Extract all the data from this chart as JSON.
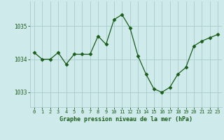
{
  "x": [
    0,
    1,
    2,
    3,
    4,
    5,
    6,
    7,
    8,
    9,
    10,
    11,
    12,
    13,
    14,
    15,
    16,
    17,
    18,
    19,
    20,
    21,
    22,
    23
  ],
  "y": [
    1034.2,
    1034.0,
    1034.0,
    1034.2,
    1033.85,
    1034.15,
    1034.15,
    1034.15,
    1034.7,
    1034.45,
    1035.2,
    1035.35,
    1034.95,
    1034.1,
    1033.55,
    1033.1,
    1033.0,
    1033.15,
    1033.55,
    1033.75,
    1034.4,
    1034.55,
    1034.65,
    1034.75
  ],
  "line_color": "#1a5c1a",
  "marker": "D",
  "marker_size": 2.5,
  "bg_color": "#ceeaea",
  "grid_color": "#a8cccc",
  "axis_label_color": "#1a5c1a",
  "tick_color": "#1a5c1a",
  "xlabel": "Graphe pression niveau de la mer (hPa)",
  "yticks": [
    1033,
    1034,
    1035
  ],
  "xticks": [
    0,
    1,
    2,
    3,
    4,
    5,
    6,
    7,
    8,
    9,
    10,
    11,
    12,
    13,
    14,
    15,
    16,
    17,
    18,
    19,
    20,
    21,
    22,
    23
  ],
  "ylim": [
    1032.55,
    1035.75
  ],
  "xlim": [
    -0.5,
    23.5
  ]
}
